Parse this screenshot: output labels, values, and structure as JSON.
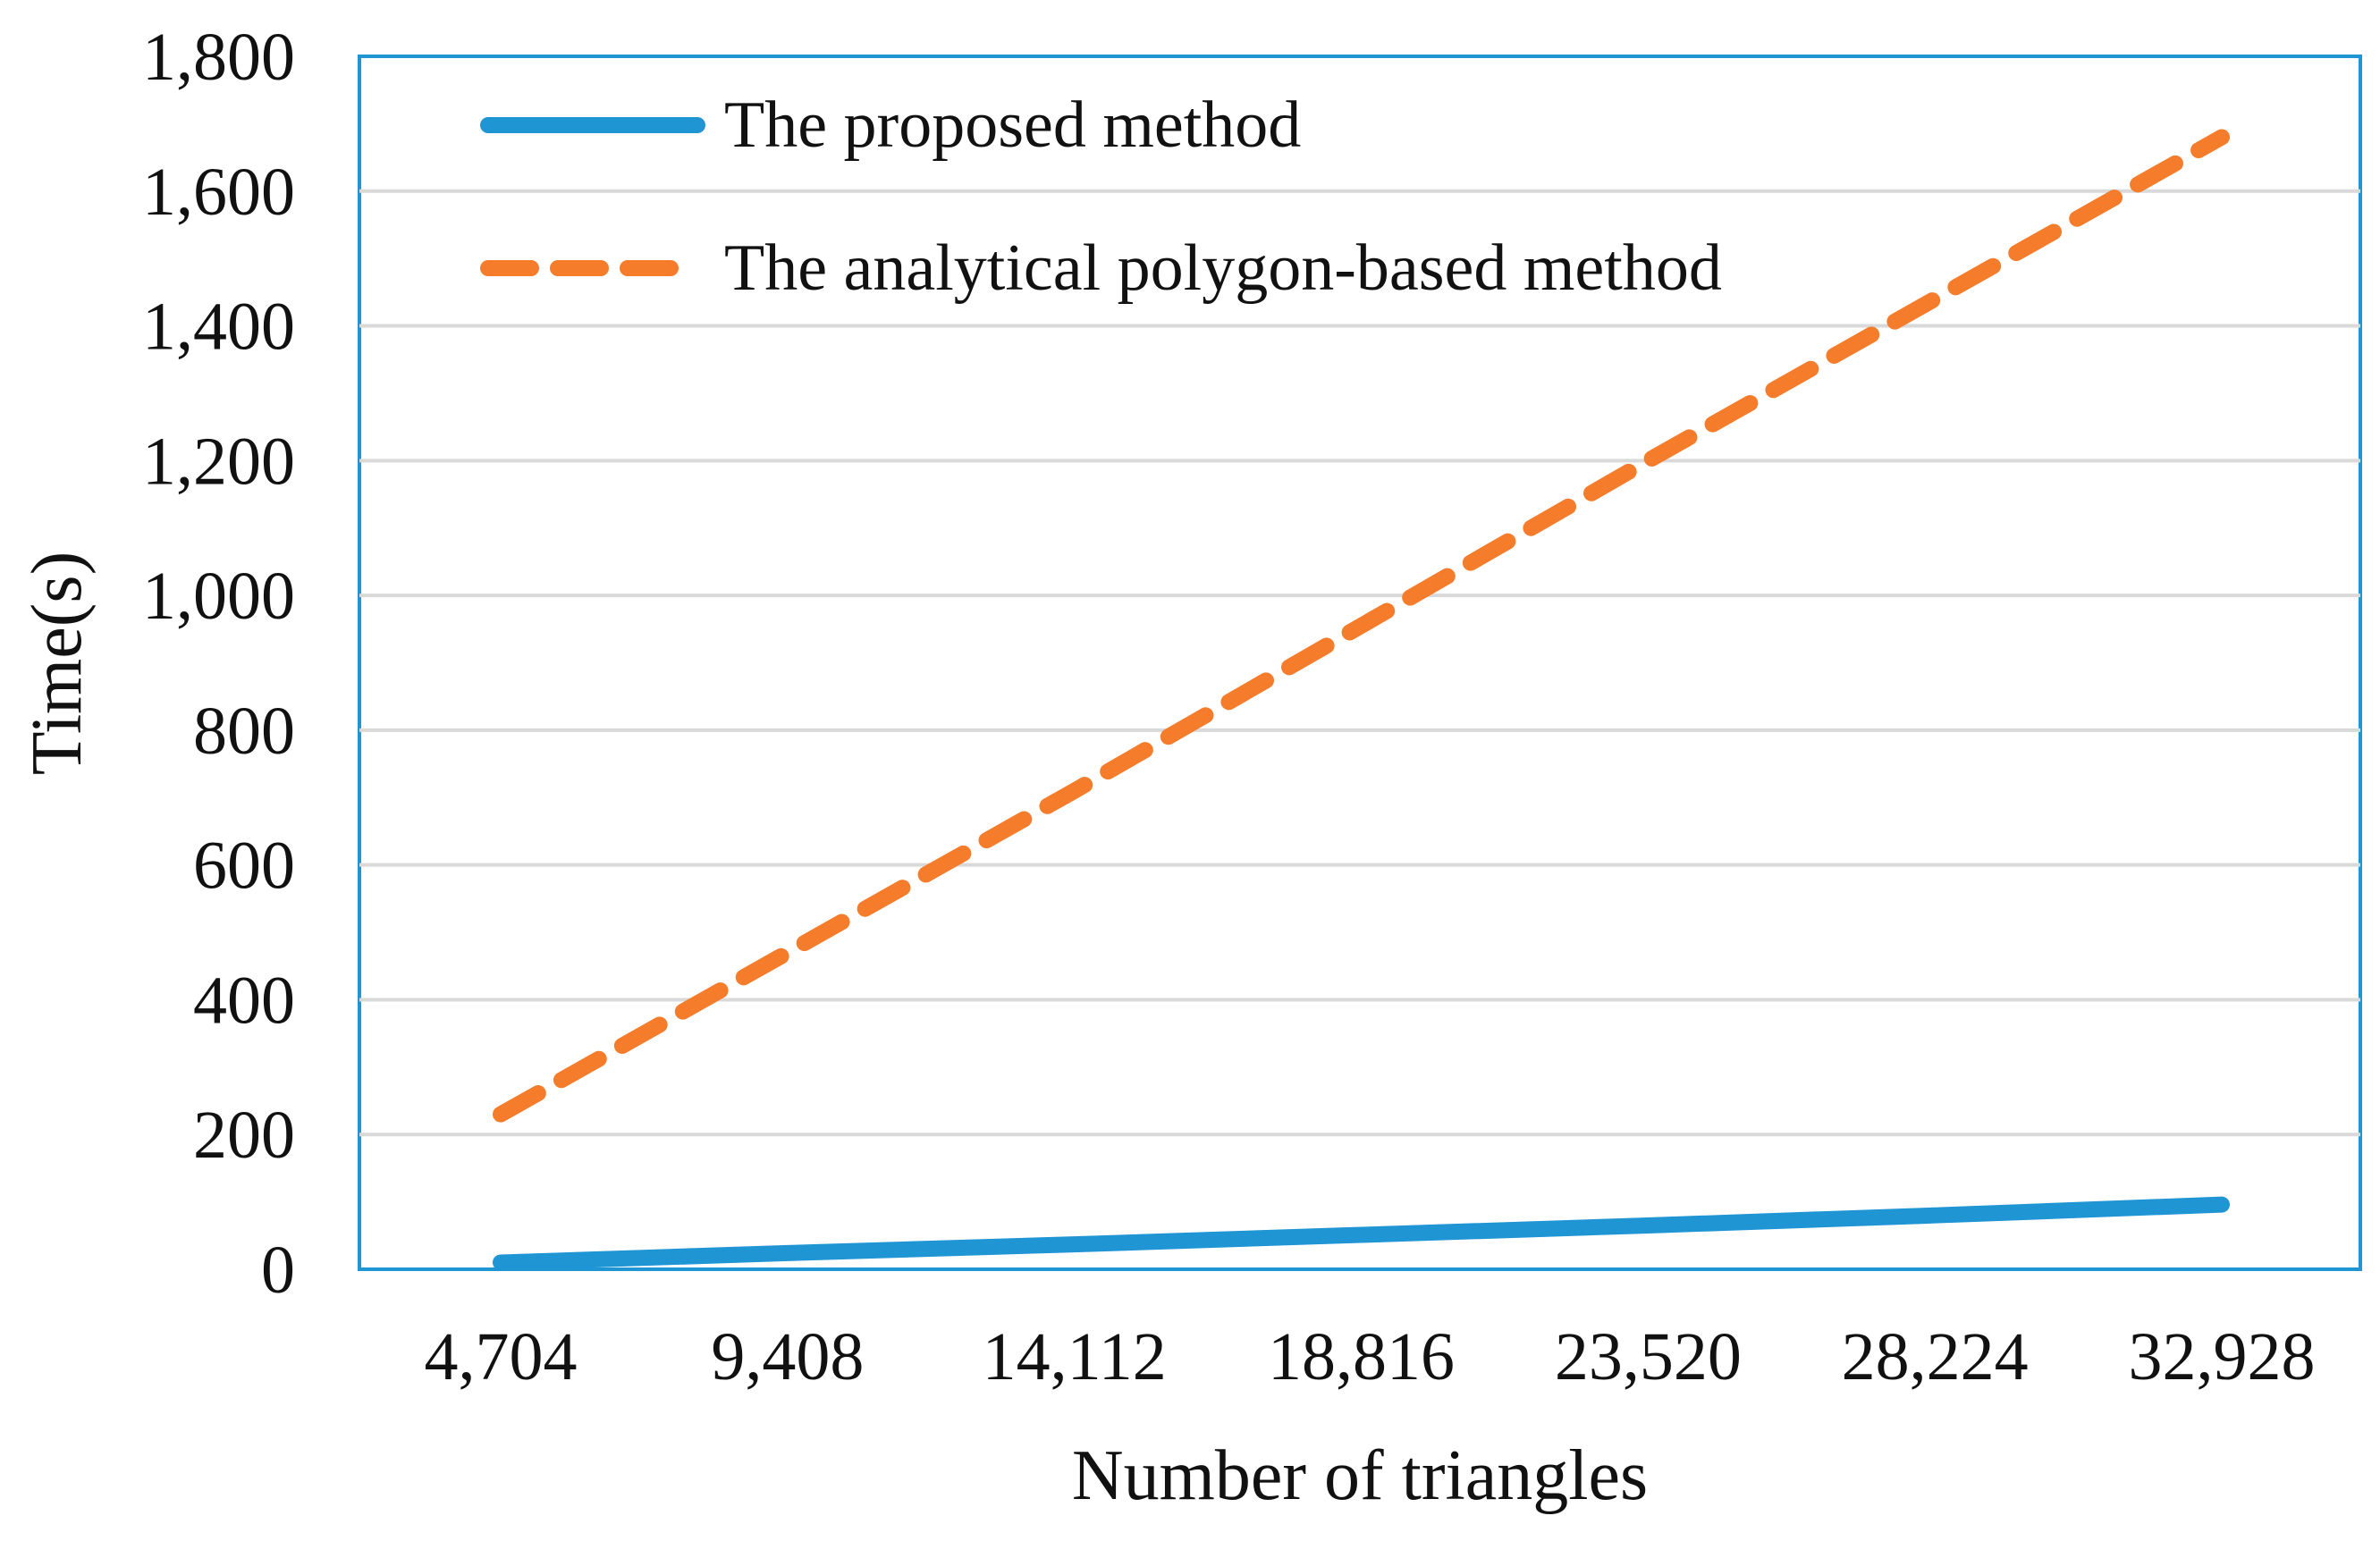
{
  "chart_data": {
    "type": "line",
    "title": "",
    "xlabel": "Number of triangles",
    "ylabel": "Time(s)",
    "categories": [
      "4,704",
      "9,408",
      "14,112",
      "18,816",
      "23,520",
      "28,224",
      "32,928"
    ],
    "x": [
      4704,
      9408,
      14112,
      18816,
      23520,
      28224,
      32928
    ],
    "ylim": [
      0,
      1800
    ],
    "yticks": [
      0,
      200,
      400,
      600,
      800,
      1000,
      1200,
      1400,
      1600,
      1800
    ],
    "ytick_labels": [
      "0",
      "200",
      "400",
      "600",
      "800",
      "1,000",
      "1,200",
      "1,400",
      "1,600",
      "1,800"
    ],
    "grid": true,
    "legend_position": "top-left",
    "series": [
      {
        "name": "The proposed method",
        "values": [
          10,
          24,
          37,
          51,
          65,
          80,
          96
        ],
        "color": "#1f95d3",
        "style": "solid"
      },
      {
        "name": "The analytical polygon-based method",
        "values": [
          230,
          470,
          710,
          955,
          1200,
          1440,
          1680
        ],
        "color": "#f47c2a",
        "style": "dashed"
      }
    ],
    "frame_color": "#1f95d3"
  }
}
